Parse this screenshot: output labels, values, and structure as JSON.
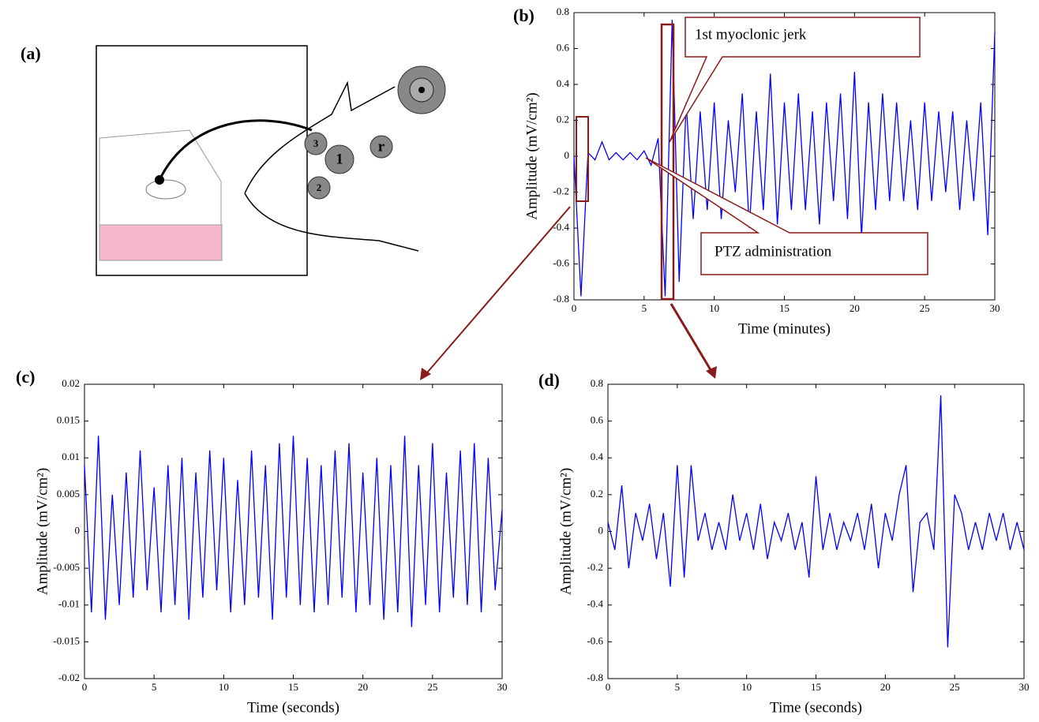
{
  "diagram": {
    "panel_label": "(a)",
    "labels": [
      "3",
      "1",
      "r",
      "2"
    ]
  },
  "chart_data": [
    {
      "type": "line",
      "panel_label": "(b)",
      "xlabel": "Time (minutes)",
      "ylabel": "Amplitude (mV/cm²)",
      "annotations": [
        "1st myoclonic jerk",
        "PTZ administration"
      ],
      "xlim": [
        0,
        30
      ],
      "ylim": [
        -0.8,
        0.8
      ],
      "xticks": [
        0,
        5,
        10,
        15,
        20,
        25,
        30
      ],
      "yticks": [
        -0.8,
        -0.6,
        -0.4,
        -0.2,
        0,
        0.2,
        0.4,
        0.6,
        0.8
      ],
      "x": [
        0,
        0.5,
        1,
        1.5,
        2,
        2.5,
        3,
        3.5,
        4,
        4.5,
        5,
        5.5,
        6,
        6.5,
        7,
        7.5,
        8,
        8.5,
        9,
        9.5,
        10,
        10.5,
        11,
        11.5,
        12,
        12.5,
        13,
        13.5,
        14,
        14.5,
        15,
        15.5,
        16,
        16.5,
        17,
        17.5,
        18,
        18.5,
        19,
        19.5,
        20,
        20.5,
        21,
        21.5,
        22,
        22.5,
        23,
        23.5,
        24,
        24.5,
        25,
        25.5,
        26,
        26.5,
        27,
        27.5,
        28,
        28.5,
        29,
        29.5,
        30
      ],
      "series": [
        {
          "color": "#0000ff",
          "values": [
            0,
            -0.78,
            0.02,
            -0.02,
            0.08,
            -0.02,
            0.02,
            -0.02,
            0.02,
            -0.02,
            0.03,
            -0.05,
            0.1,
            -0.78,
            0.76,
            -0.7,
            0.3,
            -0.35,
            0.25,
            -0.3,
            0.3,
            -0.35,
            0.2,
            -0.2,
            0.35,
            -0.4,
            0.25,
            -0.3,
            0.46,
            -0.38,
            0.3,
            -0.3,
            0.35,
            -0.3,
            0.25,
            -0.38,
            0.3,
            -0.25,
            0.35,
            -0.35,
            0.47,
            -0.45,
            0.3,
            -0.3,
            0.35,
            -0.25,
            0.3,
            -0.25,
            0.2,
            -0.3,
            0.3,
            -0.25,
            0.25,
            -0.2,
            0.25,
            -0.3,
            0.2,
            -0.25,
            0.3,
            -0.44,
            0.69
          ]
        }
      ]
    },
    {
      "type": "line",
      "panel_label": "(c)",
      "xlabel": "Time (seconds)",
      "ylabel": "Amplitude (mV/cm²)",
      "xlim": [
        0,
        30
      ],
      "ylim": [
        -0.02,
        0.02
      ],
      "xticks": [
        0,
        5,
        10,
        15,
        20,
        25,
        30
      ],
      "yticks": [
        -0.02,
        -0.015,
        -0.01,
        -0.005,
        0,
        0.005,
        0.01,
        0.015,
        0.02
      ],
      "x": [
        0,
        0.5,
        1,
        1.5,
        2,
        2.5,
        3,
        3.5,
        4,
        4.5,
        5,
        5.5,
        6,
        6.5,
        7,
        7.5,
        8,
        8.5,
        9,
        9.5,
        10,
        10.5,
        11,
        11.5,
        12,
        12.5,
        13,
        13.5,
        14,
        14.5,
        15,
        15.5,
        16,
        16.5,
        17,
        17.5,
        18,
        18.5,
        19,
        19.5,
        20,
        20.5,
        21,
        21.5,
        22,
        22.5,
        23,
        23.5,
        24,
        24.5,
        25,
        25.5,
        26,
        26.5,
        27,
        27.5,
        28,
        28.5,
        29,
        29.5,
        30
      ],
      "series": [
        {
          "color": "#0000ff",
          "values": [
            0.009,
            -0.011,
            0.013,
            -0.012,
            0.005,
            -0.01,
            0.008,
            -0.009,
            0.011,
            -0.008,
            0.006,
            -0.011,
            0.009,
            -0.01,
            0.01,
            -0.012,
            0.008,
            -0.009,
            0.011,
            -0.008,
            0.01,
            -0.011,
            0.007,
            -0.01,
            0.011,
            -0.009,
            0.009,
            -0.012,
            0.012,
            -0.009,
            0.013,
            -0.01,
            0.01,
            -0.011,
            0.009,
            -0.01,
            0.011,
            -0.009,
            0.012,
            -0.011,
            0.008,
            -0.01,
            0.01,
            -0.012,
            0.009,
            -0.011,
            0.013,
            -0.013,
            0.009,
            -0.01,
            0.012,
            -0.011,
            0.008,
            -0.009,
            0.011,
            -0.01,
            0.012,
            -0.011,
            0.01,
            -0.008,
            0.003
          ]
        }
      ]
    },
    {
      "type": "line",
      "panel_label": "(d)",
      "xlabel": "Time (seconds)",
      "ylabel": "Amplitude (mV/cm²)",
      "xlim": [
        0,
        30
      ],
      "ylim": [
        -0.8,
        0.8
      ],
      "xticks": [
        0,
        5,
        10,
        15,
        20,
        25,
        30
      ],
      "yticks": [
        -0.8,
        -0.6,
        -0.4,
        -0.2,
        0,
        0.2,
        0.4,
        0.6,
        0.8
      ],
      "x": [
        0,
        0.5,
        1,
        1.5,
        2,
        2.5,
        3,
        3.5,
        4,
        4.5,
        5,
        5.5,
        6,
        6.5,
        7,
        7.5,
        8,
        8.5,
        9,
        9.5,
        10,
        10.5,
        11,
        11.5,
        12,
        12.5,
        13,
        13.5,
        14,
        14.5,
        15,
        15.5,
        16,
        16.5,
        17,
        17.5,
        18,
        18.5,
        19,
        19.5,
        20,
        20.5,
        21,
        21.5,
        22,
        22.5,
        23,
        23.5,
        24,
        24.5,
        25,
        25.5,
        26,
        26.5,
        27,
        27.5,
        28,
        28.5,
        29,
        29.5,
        30
      ],
      "series": [
        {
          "color": "#0000ff",
          "values": [
            0.05,
            -0.1,
            0.25,
            -0.2,
            0.1,
            -0.05,
            0.15,
            -0.15,
            0.1,
            -0.3,
            0.36,
            -0.25,
            0.36,
            -0.05,
            0.1,
            -0.1,
            0.05,
            -0.1,
            0.2,
            -0.05,
            0.1,
            -0.1,
            0.15,
            -0.15,
            0.05,
            -0.05,
            0.1,
            -0.1,
            0.05,
            -0.25,
            0.3,
            -0.1,
            0.1,
            -0.1,
            0.05,
            -0.05,
            0.1,
            -0.1,
            0.15,
            -0.2,
            0.1,
            -0.05,
            0.2,
            0.36,
            -0.33,
            0.05,
            0.1,
            -0.1,
            0.74,
            -0.63,
            0.2,
            0.1,
            -0.1,
            0.05,
            -0.1,
            0.1,
            -0.05,
            0.1,
            -0.1,
            0.05,
            -0.1
          ]
        }
      ]
    }
  ]
}
